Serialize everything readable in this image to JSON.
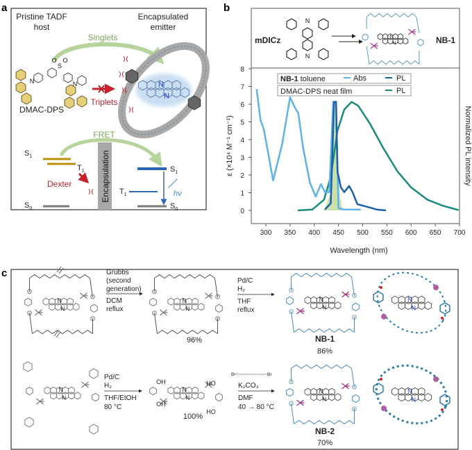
{
  "panel_labels": {
    "a": "a",
    "b": "b",
    "c": "c"
  },
  "panel_a": {
    "host_title_1": "Pristine TADF",
    "host_title_2": "host",
    "emitter_title_1": "Encapsulated",
    "emitter_title_2": "emitter",
    "singlets": "Singlets",
    "triplets": "Triplets",
    "host_name": "DMAC-DPS",
    "fret": "FRET",
    "dexter": "Dexter",
    "encapsulation": "Encapsulation",
    "state_s": "S",
    "state_t": "T",
    "sub_1": "1",
    "sub_0": "0",
    "hv": "hv",
    "sulfonyl_o": "O",
    "sulfonyl_s": "S",
    "nitrogen": "N",
    "colors": {
      "singlet_green": "#7aa85a",
      "triplet_red": "#c8202a",
      "host_gold": "#b8900a",
      "emitter_blue": "#2a66b4",
      "ring_gray": "#a8a8a8"
    }
  },
  "panel_b": {
    "precursor": "mDICz",
    "product": "NB-1",
    "nitrogen": "N",
    "legend": {
      "row1_bold": "NB-1",
      "row1_rest": " toluene",
      "abs": "Abs",
      "pl": "PL",
      "row2": "DMAC-DPS neat film",
      "pl2": "PL"
    }
  },
  "chart_data": {
    "type": "line",
    "xlabel": "Wavelength (nm)",
    "ylabel": "ε (×10⁴ M⁻¹ cm⁻¹)",
    "ylabel_right": "Normalized PL intensity",
    "xlim": [
      270,
      700
    ],
    "ylim": [
      -0.8,
      8
    ],
    "xticks": [
      300,
      350,
      400,
      450,
      500,
      550,
      600,
      650,
      700
    ],
    "yticks": [
      0,
      1,
      2,
      3,
      4,
      5,
      6,
      7,
      8
    ],
    "legend_position": "top",
    "series": [
      {
        "name": "NB-1 toluene Abs",
        "color": "#5ab4e8",
        "x": [
          281,
          289,
          296,
          315,
          334,
          350,
          360,
          367,
          377,
          391,
          403,
          414,
          422,
          431,
          439,
          445,
          450,
          462,
          496
        ],
        "y": [
          6.85,
          5.1,
          4.56,
          1.69,
          3.78,
          6.39,
          5.8,
          5.5,
          3.53,
          1.57,
          0.78,
          1.49,
          1.03,
          1.03,
          6.13,
          6.13,
          0.12,
          0.05,
          0.05
        ]
      },
      {
        "name": "NB-1 toluene PL",
        "color": "#1a5fa8",
        "x": [
          422,
          434,
          441,
          445,
          448,
          455,
          462,
          472,
          479,
          489,
          510,
          529,
          548
        ],
        "y": [
          0.05,
          0.4,
          6.13,
          6.13,
          2.2,
          1.3,
          1.03,
          1.38,
          1.03,
          0.35,
          0.2,
          0.05,
          0.0
        ]
      },
      {
        "name": "DMAC-DPS neat film PL",
        "color": "#178a7a",
        "x": [
          366,
          396,
          420,
          434,
          448,
          462,
          477,
          491,
          515,
          543,
          572,
          600,
          634,
          667,
          698
        ],
        "y": [
          0,
          0.05,
          0.6,
          1.9,
          4.5,
          5.7,
          6.13,
          5.9,
          4.9,
          3.5,
          2.2,
          1.3,
          0.6,
          0.25,
          0.02
        ]
      }
    ],
    "shaded_overlap": {
      "color": "#c5dea0",
      "x": [
        420,
        434,
        440,
        444,
        448,
        452,
        458
      ],
      "y": [
        0,
        1.0,
        4.0,
        6.1,
        4.0,
        1.0,
        0
      ]
    }
  },
  "panel_c": {
    "step1_reagents": [
      "Grubbs",
      "(second",
      "generation)"
    ],
    "step1_conditions": [
      "DCM",
      "reflux"
    ],
    "step1_yield": "96%",
    "step2_reagents": [
      "Pd/C",
      "H₂"
    ],
    "step2_conditions": [
      "THF",
      "reflux"
    ],
    "product1_name": "NB-1",
    "product1_yield": "86%",
    "step3_reagents": [
      "Pd/C",
      "H₂"
    ],
    "step3_conditions": [
      "THF/EtOH",
      "80 °C"
    ],
    "step3_yield": "100%",
    "step4_dibromide": "Br~~~~~~~~~~~~Br",
    "step4_reagents": [
      "K₂CO₃"
    ],
    "step4_conditions": [
      "DMF",
      "40 → 80 °C"
    ],
    "product2_name": "NB-2",
    "product2_yield": "70%",
    "atom_o": "O",
    "atom_n": "N",
    "atom_oh": "OH",
    "atom_ho": "HO"
  }
}
